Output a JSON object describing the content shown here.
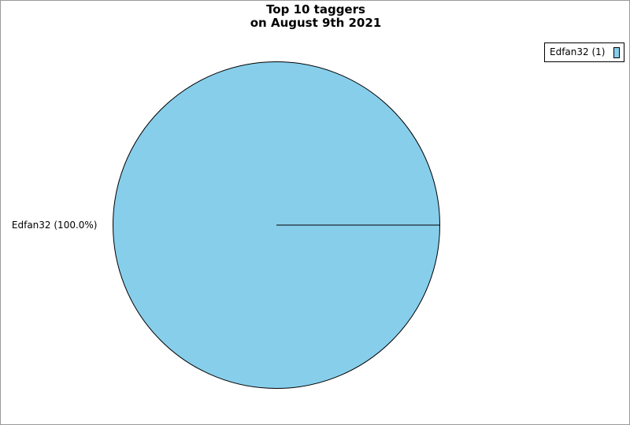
{
  "chart_data": {
    "type": "pie",
    "title": "Top 10 taggers",
    "subtitle": "on August 9th 2021",
    "slices": [
      {
        "name": "Edfan32",
        "value": 1,
        "percent": 100.0,
        "color": "#87CEEB",
        "label": "Edfan32 (100.0%)",
        "legend": "Edfan32 (1)"
      }
    ],
    "legend_position": "top-right"
  }
}
